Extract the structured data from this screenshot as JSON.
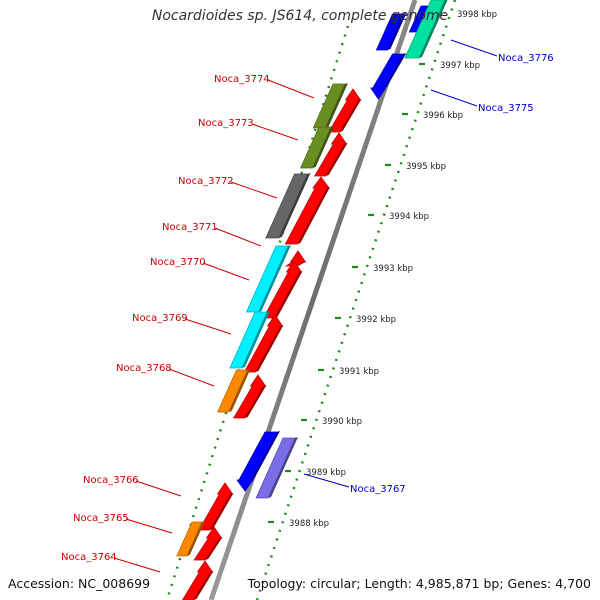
{
  "title": "Nocardioides sp. JS614, complete genome",
  "footer": {
    "accession": "Accession: NC_008699",
    "topology": "Topology: circular; Length: 4,985,871 bp; Genes: 4,700"
  },
  "colors": {
    "backbone": "#6e6e6e",
    "tick_line": "#1a8c1a",
    "label_left": "#cc0000",
    "label_right": "#0000cc",
    "tick_text": "#222222"
  },
  "ticks": [
    "3988 kbp",
    "3989 kbp",
    "3990 kbp",
    "3991 kbp",
    "3992 kbp",
    "3993 kbp",
    "3994 kbp",
    "3995 kbp",
    "3996 kbp",
    "3997 kbp",
    "3998 kbp"
  ],
  "genes_left": [
    {
      "name": "Noca_3774"
    },
    {
      "name": "Noca_3773"
    },
    {
      "name": "Noca_3772"
    },
    {
      "name": "Noca_3771"
    },
    {
      "name": "Noca_3770"
    },
    {
      "name": "Noca_3769"
    },
    {
      "name": "Noca_3768"
    },
    {
      "name": "Noca_3766"
    },
    {
      "name": "Noca_3765"
    },
    {
      "name": "Noca_3764"
    }
  ],
  "genes_right": [
    {
      "name": "Noca_3776"
    },
    {
      "name": "Noca_3775"
    },
    {
      "name": "Noca_3767"
    }
  ],
  "blocks": [
    {
      "id": "noca-3776-block",
      "color": "#00e0a0"
    },
    {
      "id": "noca-3775-block",
      "color": "#0000ff"
    },
    {
      "id": "noca-3774-block",
      "color": "#6b8e23"
    },
    {
      "id": "noca-3773-block",
      "color": "#6b8e23"
    },
    {
      "id": "noca-3772-block",
      "color": "#666666"
    },
    {
      "id": "noca-3770-block",
      "color": "#00f0ff"
    },
    {
      "id": "noca-3769-block",
      "color": "#00f0ff"
    },
    {
      "id": "noca-3768-block",
      "color": "#ff8800"
    },
    {
      "id": "noca-3767-block-a",
      "color": "#0000ff"
    },
    {
      "id": "noca-3767-block-b",
      "color": "#7a6ee8"
    },
    {
      "id": "noca-3765-block",
      "color": "#ff8800"
    },
    {
      "id": "red-gene",
      "color": "#ff0000"
    }
  ]
}
